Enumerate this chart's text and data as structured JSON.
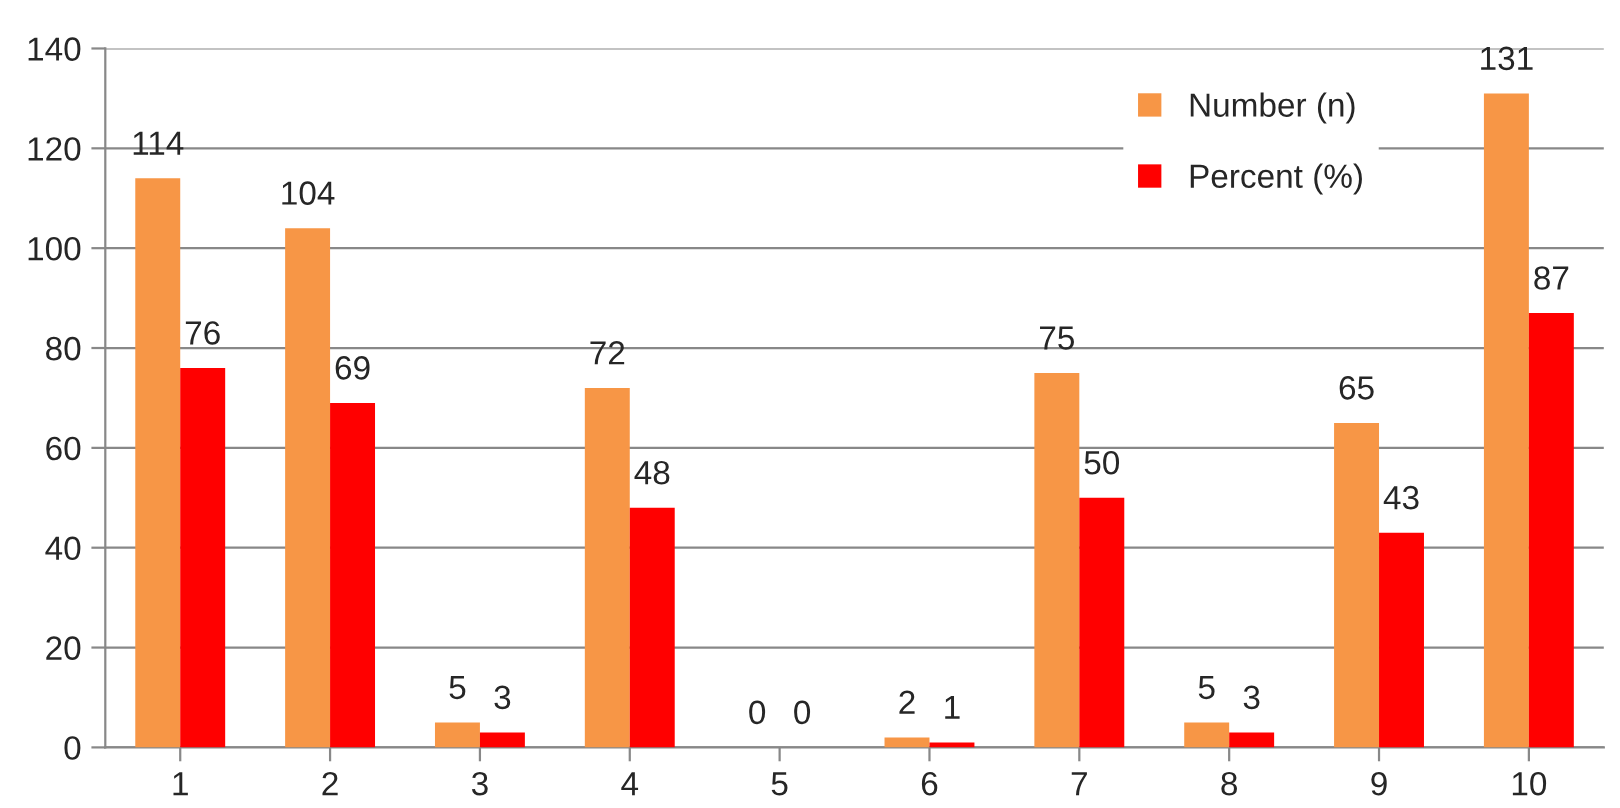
{
  "chart_data": {
    "type": "bar",
    "categories": [
      "1",
      "2",
      "3",
      "4",
      "5",
      "6",
      "7",
      "8",
      "9",
      "10"
    ],
    "series": [
      {
        "name": "Number (n)",
        "color": "#f79646",
        "values": [
          114,
          104,
          5,
          72,
          0,
          2,
          75,
          5,
          65,
          131
        ]
      },
      {
        "name": "Percent (%)",
        "color": "#ff0000",
        "values": [
          76,
          69,
          3,
          48,
          0,
          1,
          50,
          3,
          43,
          87
        ]
      }
    ],
    "ylim": [
      0,
      140
    ],
    "yticks": [
      0,
      20,
      40,
      60,
      80,
      100,
      120,
      140
    ],
    "grid": "y",
    "legend": "top right",
    "data_labels": true
  }
}
